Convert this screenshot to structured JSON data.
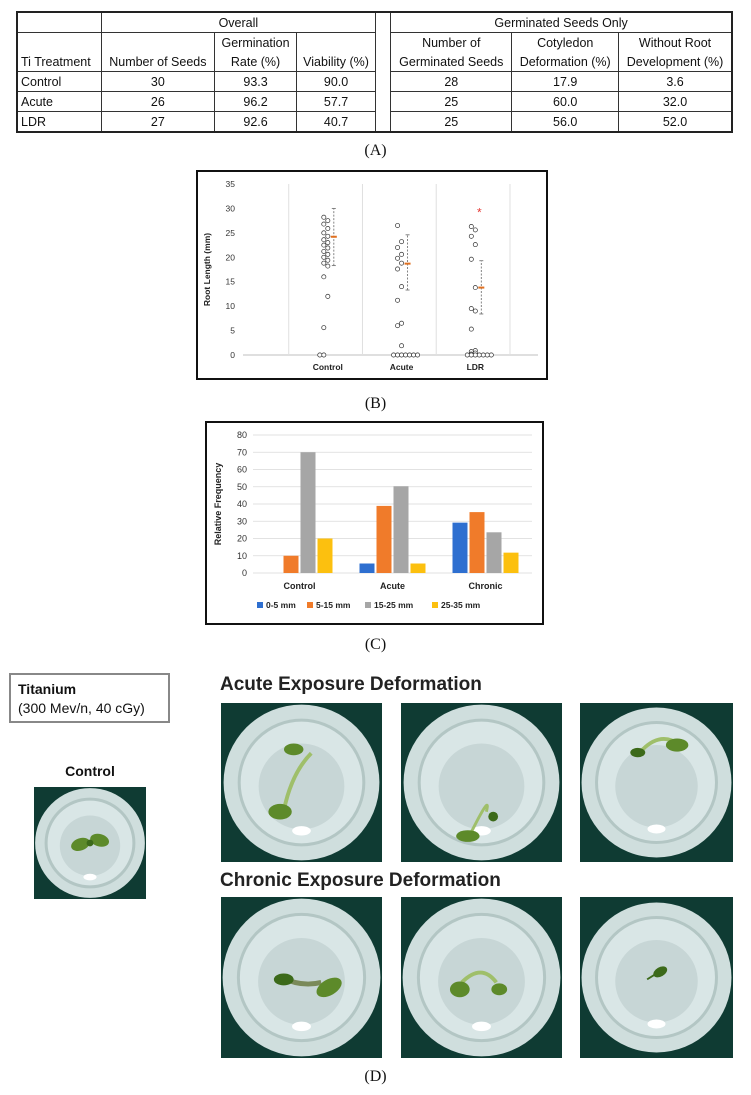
{
  "table_a": {
    "group_overall": "Overall",
    "group_germinated": "Germinated Seeds Only",
    "col_treatment": "Ti Treatment",
    "col_seeds": "Number of Seeds",
    "col_germ_1": "Germination",
    "col_germ_2": "Rate (%)",
    "col_viability": "Viability (%)",
    "col_ngerm_1": "Number of",
    "col_ngerm_2": "Germinated Seeds",
    "col_coty_1": "Cotyledon",
    "col_coty_2": "Deformation (%)",
    "col_root_1": "Without Root",
    "col_root_2": "Development (%)",
    "rows": [
      {
        "treatment": "Control",
        "seeds": "30",
        "germ": "93.3",
        "viability": "90.0",
        "ngerm": "28",
        "coty": "17.9",
        "root": "3.6"
      },
      {
        "treatment": "Acute",
        "seeds": "26",
        "germ": "96.2",
        "viability": "57.7",
        "ngerm": "25",
        "coty": "60.0",
        "root": "32.0"
      },
      {
        "treatment": "LDR",
        "seeds": "27",
        "germ": "92.6",
        "viability": "40.7",
        "ngerm": "25",
        "coty": "56.0",
        "root": "52.0"
      }
    ]
  },
  "captions": {
    "a": "(A)",
    "b": "(B)",
    "c": "(C)",
    "d": "(D)"
  },
  "chart_data": [
    {
      "type": "scatter",
      "ylabel": "Root Length (mm)",
      "ylim": [
        0,
        35
      ],
      "yticks": [
        "0",
        "5",
        "10",
        "15",
        "20",
        "25",
        "30",
        "35"
      ],
      "categories": [
        "Control",
        "Acute",
        "LDR"
      ],
      "series": [
        {
          "name": "Control",
          "values": [
            28.2,
            27.5,
            26.8,
            25.9,
            25.0,
            24.3,
            23.6,
            23.0,
            22.5,
            21.9,
            21.2,
            20.6,
            20.0,
            19.4,
            18.8,
            18.2,
            16.0,
            12.0,
            5.6,
            0,
            0
          ]
        },
        {
          "name": "Acute",
          "values": [
            26.5,
            23.2,
            22.0,
            20.6,
            19.8,
            18.8,
            17.6,
            14.0,
            11.2,
            6.5,
            6.0,
            1.9,
            0,
            0,
            0,
            0,
            0,
            0,
            0
          ]
        },
        {
          "name": "LDR",
          "values": [
            26.3,
            25.6,
            24.3,
            22.6,
            19.6,
            13.8,
            9.5,
            9.0,
            5.3,
            0.9,
            0.7,
            0.4,
            0.2,
            0,
            0,
            0,
            0,
            0,
            0,
            0
          ]
        }
      ],
      "means": [
        24.2,
        18.7,
        13.8
      ],
      "error_bars": [
        [
          18.3,
          30.0
        ],
        [
          13.3,
          24.6
        ],
        [
          8.4,
          19.3
        ]
      ],
      "significance_marker": {
        "category": "LDR",
        "text": "*",
        "color": "#e53935",
        "value": 29.2
      },
      "mean_color": "#e07020"
    },
    {
      "type": "bar",
      "ylabel": "Relative Frequency",
      "ylim": [
        0,
        80
      ],
      "yticks": [
        "0",
        "10",
        "20",
        "30",
        "40",
        "50",
        "60",
        "70",
        "80"
      ],
      "categories": [
        "Control",
        "Acute",
        "Chronic"
      ],
      "series": [
        {
          "name": "0-5 mm",
          "color": "#2e6fd0",
          "values": [
            0,
            5.5,
            29.2
          ]
        },
        {
          "name": "5-15 mm",
          "color": "#f07b2a",
          "values": [
            10,
            38.9,
            35.3
          ]
        },
        {
          "name": "15-25 mm",
          "color": "#a6a6a6",
          "values": [
            70,
            50.3,
            23.6
          ]
        },
        {
          "name": "25-35 mm",
          "color": "#fcc00f",
          "values": [
            20,
            5.5,
            11.8
          ]
        }
      ],
      "legend_position": "bottom"
    }
  ],
  "panel_d": {
    "box_title": "Titanium",
    "box_subtitle": "(300 Mev/n, 40 cGy)",
    "control_label": "Control",
    "acute_heading": "Acute Exposure Deformation",
    "chronic_heading": "Chronic Exposure Deformation",
    "photo_colors": {
      "bezel": "#0f3b33",
      "cup": "#d9e6e6",
      "leaf": "#5d8a2a",
      "seedling_dark": "#3c6a1a"
    }
  }
}
